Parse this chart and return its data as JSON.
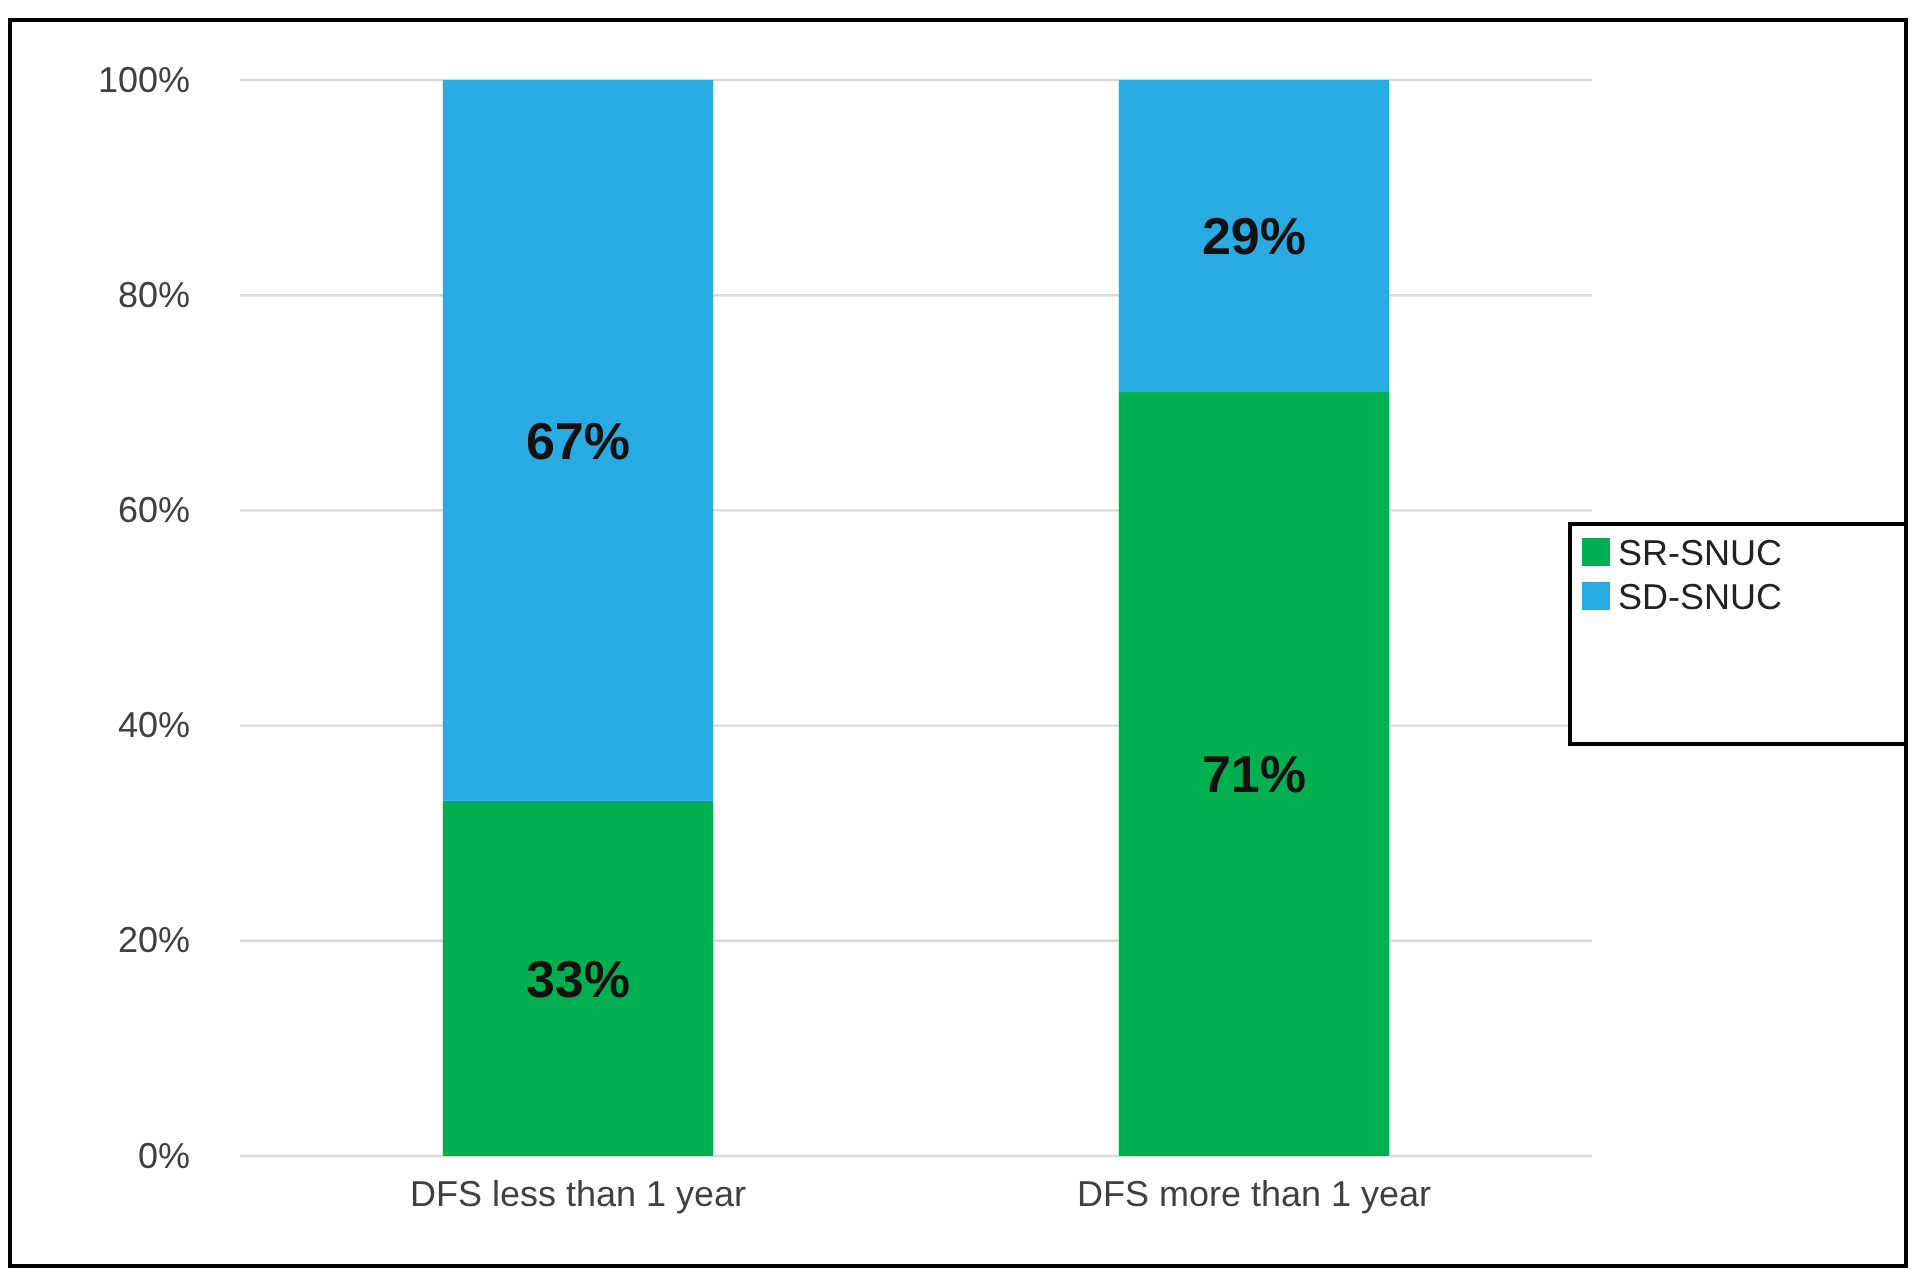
{
  "chart_data": {
    "type": "bar",
    "stacked": true,
    "categories": [
      "DFS less than 1 year",
      "DFS more than 1 year"
    ],
    "series": [
      {
        "name": "SR-SNUC",
        "color": "#00b050",
        "values": [
          33,
          71
        ],
        "value_labels": [
          "33%",
          "71%"
        ]
      },
      {
        "name": "SD-SNUC",
        "color": "#29abe2",
        "values": [
          67,
          29
        ],
        "value_labels": [
          "67%",
          "29%"
        ]
      }
    ],
    "ylim": [
      0,
      100
    ],
    "yticks": [
      {
        "value": 0,
        "label": "0%"
      },
      {
        "value": 20,
        "label": "20%"
      },
      {
        "value": 40,
        "label": "40%"
      },
      {
        "value": 60,
        "label": "60%"
      },
      {
        "value": 80,
        "label": "80%"
      },
      {
        "value": 100,
        "label": "100%"
      }
    ],
    "grid": "y",
    "legend": "right"
  }
}
